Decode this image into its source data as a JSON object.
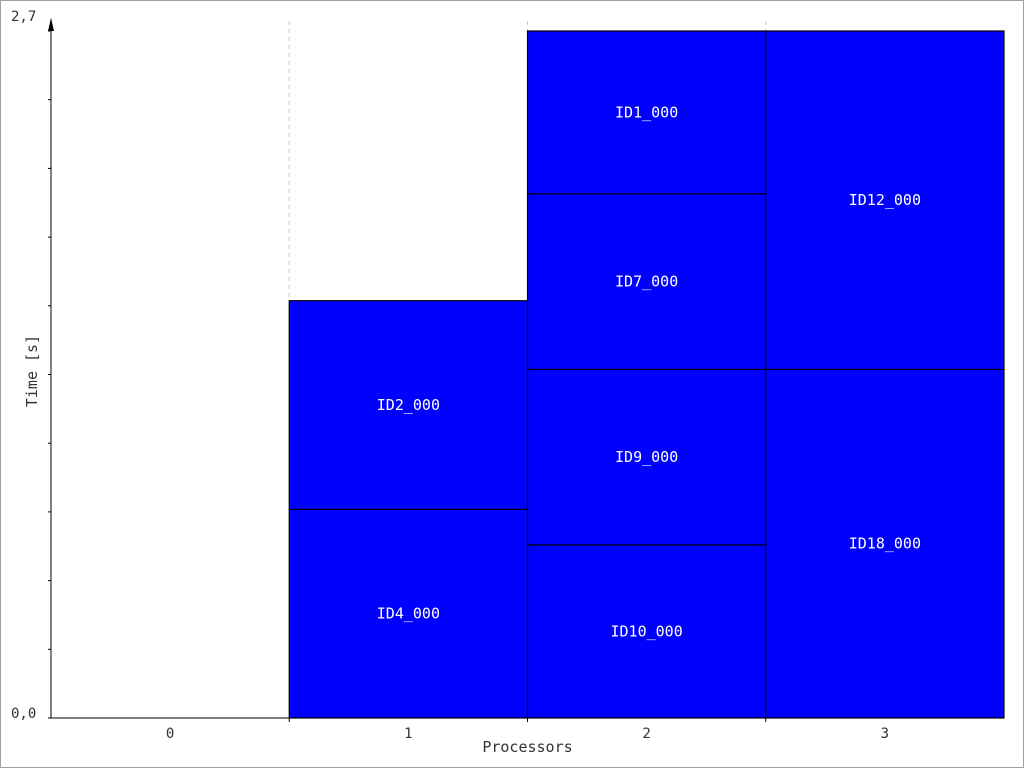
{
  "chart_data": {
    "type": "bar",
    "subtype": "gantt-stacked",
    "xlabel": "Processors",
    "ylabel": "Time [s]",
    "categories": [
      "0",
      "1",
      "2",
      "3"
    ],
    "ylim": [
      0,
      2.7
    ],
    "y_tick_labels": [
      {
        "value": 0,
        "label": "0,0"
      },
      {
        "value": 2.7,
        "label": "2,7"
      }
    ],
    "grid": "dashed vertical separators between processors",
    "bar_color": "#0000ff",
    "bar_edge_color": "#000000",
    "label_color": "#ffffff",
    "tasks": [
      {
        "processor": 1,
        "label": "ID4_000",
        "start": 0.0,
        "end": 0.82
      },
      {
        "processor": 1,
        "label": "ID2_000",
        "start": 0.82,
        "end": 1.64
      },
      {
        "processor": 2,
        "label": "ID10_000",
        "start": 0.0,
        "end": 0.68
      },
      {
        "processor": 2,
        "label": "ID9_000",
        "start": 0.68,
        "end": 1.37
      },
      {
        "processor": 2,
        "label": "ID7_000",
        "start": 1.37,
        "end": 2.06
      },
      {
        "processor": 2,
        "label": "ID1_000",
        "start": 2.06,
        "end": 2.7
      },
      {
        "processor": 3,
        "label": "ID18_000",
        "start": 0.0,
        "end": 1.37
      },
      {
        "processor": 3,
        "label": "ID12_000",
        "start": 1.37,
        "end": 2.7
      }
    ]
  }
}
